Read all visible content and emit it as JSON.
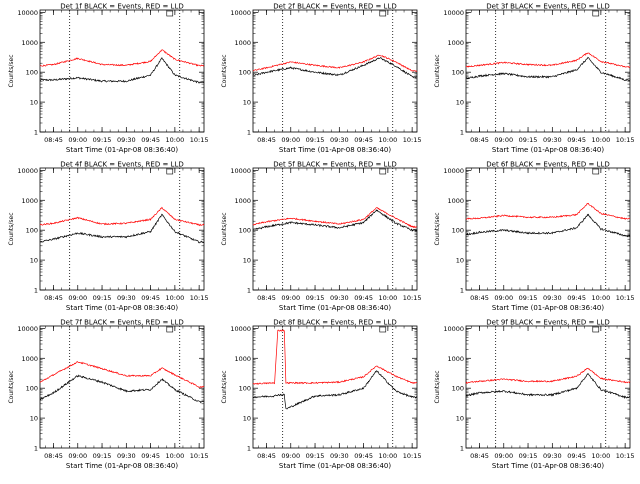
{
  "chart_data": {
    "type": "line",
    "yscale": "log",
    "ylim": [
      1,
      12000
    ],
    "xlim": [
      "08:36:40",
      "10:18:00"
    ],
    "xlabel": "Start Time (01-Apr-08 08:36:40)",
    "ylabel": "Counts/sec",
    "x_ticks": [
      "08:45",
      "09:00",
      "09:15",
      "09:30",
      "09:45",
      "10:00",
      "10:15"
    ],
    "y_ticks": [
      "1",
      "10",
      "100",
      "1000",
      "10000"
    ],
    "vertical_markers": [
      "08:55:00",
      "10:03:00"
    ],
    "series_labels": {
      "black": "Events",
      "red": "LLD"
    },
    "colors": {
      "black": "#000000",
      "red": "#ff0000"
    },
    "panels": [
      {
        "title": "Det 1f BLACK = Events, RED = LLD",
        "red": {
          "x": [
            "08:36",
            "08:45",
            "09:00",
            "09:15",
            "09:30",
            "09:45",
            "09:52",
            "10:00",
            "10:15"
          ],
          "y": [
            160,
            180,
            290,
            180,
            170,
            230,
            560,
            270,
            165
          ]
        },
        "black": {
          "x": [
            "08:36",
            "08:45",
            "09:00",
            "09:15",
            "09:30",
            "09:45",
            "09:52",
            "10:00",
            "10:15"
          ],
          "y": [
            55,
            55,
            65,
            50,
            50,
            80,
            290,
            80,
            45
          ]
        }
      },
      {
        "title": "Det 2f BLACK = Events, RED = LLD",
        "red": {
          "x": [
            "08:36",
            "08:45",
            "09:00",
            "09:15",
            "09:30",
            "09:45",
            "09:55",
            "10:05",
            "10:15"
          ],
          "y": [
            110,
            140,
            220,
            170,
            140,
            220,
            380,
            220,
            110
          ]
        },
        "black": {
          "x": [
            "08:36",
            "08:45",
            "09:00",
            "09:15",
            "09:30",
            "09:45",
            "09:55",
            "10:05",
            "10:15"
          ],
          "y": [
            75,
            100,
            140,
            100,
            80,
            170,
            300,
            160,
            70
          ]
        }
      },
      {
        "title": "Det 3f BLACK = Events, RED = LLD",
        "red": {
          "x": [
            "08:36",
            "08:45",
            "09:00",
            "09:15",
            "09:30",
            "09:45",
            "09:52",
            "10:00",
            "10:15"
          ],
          "y": [
            150,
            170,
            210,
            180,
            170,
            250,
            450,
            230,
            150
          ]
        },
        "black": {
          "x": [
            "08:36",
            "08:45",
            "09:00",
            "09:15",
            "09:30",
            "09:45",
            "09:52",
            "10:00",
            "10:15"
          ],
          "y": [
            60,
            75,
            90,
            70,
            70,
            120,
            300,
            100,
            55
          ]
        }
      },
      {
        "title": "Det 4f BLACK = Events, RED = LLD",
        "red": {
          "x": [
            "08:36",
            "08:45",
            "09:00",
            "09:15",
            "09:30",
            "09:45",
            "09:52",
            "10:00",
            "10:15"
          ],
          "y": [
            150,
            170,
            260,
            160,
            170,
            230,
            560,
            230,
            150
          ]
        },
        "black": {
          "x": [
            "08:36",
            "08:45",
            "09:00",
            "09:15",
            "09:30",
            "09:45",
            "09:52",
            "10:00",
            "10:15"
          ],
          "y": [
            40,
            50,
            80,
            60,
            60,
            90,
            330,
            90,
            40
          ]
        }
      },
      {
        "title": "Det 5f BLACK = Events, RED = LLD",
        "red": {
          "x": [
            "08:36",
            "08:45",
            "09:00",
            "09:15",
            "09:30",
            "09:45",
            "09:53",
            "10:05",
            "10:15"
          ],
          "y": [
            150,
            190,
            250,
            200,
            160,
            230,
            560,
            250,
            130
          ]
        },
        "black": {
          "x": [
            "08:36",
            "08:45",
            "09:00",
            "09:15",
            "09:30",
            "09:45",
            "09:53",
            "10:05",
            "10:15"
          ],
          "y": [
            100,
            130,
            180,
            150,
            120,
            180,
            470,
            170,
            100
          ]
        }
      },
      {
        "title": "Det 6f BLACK = Events, RED = LLD",
        "red": {
          "x": [
            "08:36",
            "08:45",
            "09:00",
            "09:15",
            "09:30",
            "09:45",
            "09:52",
            "10:00",
            "10:15"
          ],
          "y": [
            240,
            250,
            310,
            270,
            270,
            330,
            790,
            360,
            240
          ]
        },
        "black": {
          "x": [
            "08:36",
            "08:45",
            "09:00",
            "09:15",
            "09:30",
            "09:45",
            "09:52",
            "10:00",
            "10:15"
          ],
          "y": [
            70,
            85,
            100,
            80,
            80,
            120,
            330,
            110,
            65
          ]
        }
      },
      {
        "title": "Det 7f BLACK = Events, RED = LLD",
        "red": {
          "x": [
            "08:36",
            "08:45",
            "09:00",
            "09:15",
            "09:30",
            "09:45",
            "09:52",
            "10:00",
            "10:15"
          ],
          "y": [
            150,
            280,
            760,
            450,
            260,
            260,
            470,
            280,
            110
          ]
        },
        "black": {
          "x": [
            "08:36",
            "08:45",
            "09:00",
            "09:15",
            "09:30",
            "09:45",
            "09:52",
            "10:00",
            "10:15"
          ],
          "y": [
            40,
            70,
            260,
            160,
            80,
            90,
            200,
            90,
            35
          ]
        }
      },
      {
        "title": "Det 8f BLACK = Events, RED = LLD",
        "red": {
          "x": [
            "08:36",
            "08:50",
            "08:52",
            "08:56",
            "08:57",
            "09:15",
            "09:30",
            "09:45",
            "09:53",
            "10:05",
            "10:15"
          ],
          "y": [
            140,
            150,
            8500,
            8500,
            150,
            150,
            160,
            240,
            560,
            250,
            150
          ]
        },
        "black": {
          "x": [
            "08:36",
            "08:50",
            "08:52",
            "08:56",
            "08:57",
            "09:15",
            "09:30",
            "09:45",
            "09:53",
            "10:05",
            "10:15"
          ],
          "y": [
            50,
            55,
            60,
            60,
            20,
            55,
            60,
            100,
            380,
            80,
            50
          ]
        }
      },
      {
        "title": "Det 9f BLACK = Events, RED = LLD",
        "red": {
          "x": [
            "08:36",
            "08:45",
            "09:00",
            "09:15",
            "09:30",
            "09:45",
            "09:52",
            "10:00",
            "10:15"
          ],
          "y": [
            150,
            170,
            200,
            170,
            170,
            250,
            470,
            210,
            160
          ]
        },
        "black": {
          "x": [
            "08:36",
            "08:45",
            "09:00",
            "09:15",
            "09:30",
            "09:45",
            "09:52",
            "10:00",
            "10:15"
          ],
          "y": [
            55,
            70,
            80,
            60,
            60,
            100,
            300,
            90,
            50
          ]
        }
      }
    ]
  }
}
